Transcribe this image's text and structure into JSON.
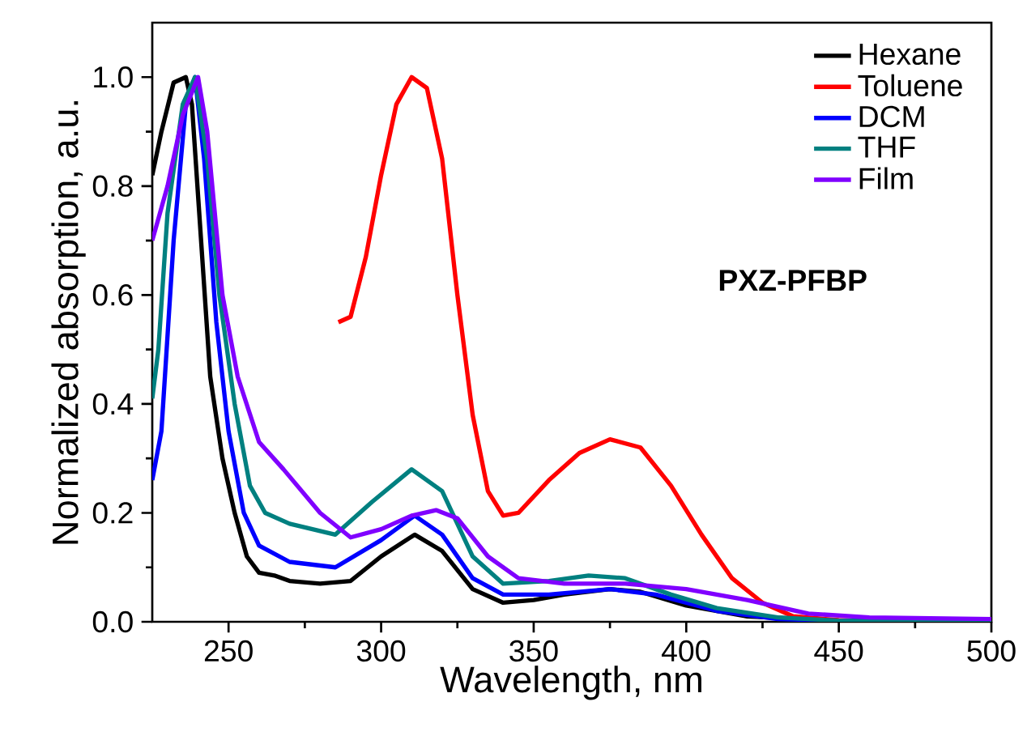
{
  "chart_data": {
    "type": "line",
    "xlabel": "Wavelength, nm",
    "ylabel": "Normalized absorption, a.u.",
    "annotations": [
      "PXZ-PFBP"
    ],
    "legend": "top right",
    "grid": false,
    "marker": "none",
    "line_style": "solid",
    "xlim": [
      225,
      500
    ],
    "xticks": [
      250,
      300,
      350,
      400,
      450,
      500
    ],
    "ylim": [
      0,
      1.1
    ],
    "yticks": [
      {
        "value": 0,
        "label": "0.0"
      },
      {
        "value": 0.2,
        "label": "0.2"
      },
      {
        "value": 0.4,
        "label": "0.4"
      },
      {
        "value": 0.6,
        "label": "0.6"
      },
      {
        "value": 0.8,
        "label": "0.8"
      },
      {
        "value": 1.0,
        "label": "1.0"
      }
    ],
    "series": [
      {
        "name": "Hexane",
        "color": "#000000",
        "x": [
          225,
          228,
          232,
          236,
          238,
          241,
          244,
          248,
          252,
          256,
          260,
          265,
          270,
          280,
          290,
          300,
          311,
          320,
          330,
          340,
          350,
          360,
          375,
          385,
          400,
          420,
          450,
          500
        ],
        "values": [
          0.82,
          0.9,
          0.99,
          1.0,
          0.95,
          0.7,
          0.45,
          0.3,
          0.2,
          0.12,
          0.09,
          0.085,
          0.075,
          0.07,
          0.075,
          0.12,
          0.16,
          0.13,
          0.06,
          0.035,
          0.04,
          0.05,
          0.06,
          0.055,
          0.03,
          0.01,
          0.002,
          0
        ]
      },
      {
        "name": "Toluene",
        "color": "#ff0000",
        "x": [
          286,
          290,
          295,
          300,
          305,
          310,
          315,
          320,
          325,
          330,
          335,
          340,
          345,
          355,
          365,
          375,
          385,
          395,
          405,
          415,
          425,
          435,
          450,
          470
        ],
        "values": [
          0.55,
          0.56,
          0.67,
          0.82,
          0.95,
          1.0,
          0.98,
          0.85,
          0.6,
          0.38,
          0.24,
          0.195,
          0.2,
          0.26,
          0.31,
          0.335,
          0.32,
          0.25,
          0.16,
          0.08,
          0.035,
          0.01,
          0.003,
          0
        ]
      },
      {
        "name": "DCM",
        "color": "#0000ff",
        "x": [
          225,
          228,
          232,
          236,
          239,
          242,
          246,
          250,
          255,
          260,
          270,
          285,
          300,
          311,
          320,
          330,
          340,
          355,
          375,
          390,
          410,
          430,
          450,
          500
        ],
        "values": [
          0.26,
          0.35,
          0.7,
          0.95,
          1.0,
          0.85,
          0.55,
          0.35,
          0.2,
          0.14,
          0.11,
          0.1,
          0.15,
          0.195,
          0.16,
          0.08,
          0.05,
          0.05,
          0.06,
          0.05,
          0.02,
          0.005,
          0.002,
          0
        ]
      },
      {
        "name": "THF",
        "color": "#008080",
        "x": [
          225,
          227,
          230,
          235,
          239,
          243,
          247,
          252,
          257,
          262,
          270,
          285,
          297,
          310,
          320,
          330,
          340,
          355,
          368,
          380,
          395,
          410,
          430,
          450,
          500
        ],
        "values": [
          0.41,
          0.5,
          0.75,
          0.95,
          1.0,
          0.85,
          0.6,
          0.4,
          0.25,
          0.2,
          0.18,
          0.16,
          0.22,
          0.28,
          0.24,
          0.12,
          0.07,
          0.075,
          0.085,
          0.08,
          0.05,
          0.025,
          0.008,
          0.002,
          0
        ]
      },
      {
        "name": "Film",
        "color": "#8000ff",
        "x": [
          225,
          230,
          235,
          240,
          243,
          248,
          253,
          260,
          268,
          280,
          290,
          300,
          310,
          318,
          325,
          335,
          345,
          360,
          380,
          400,
          420,
          440,
          460,
          500
        ],
        "values": [
          0.7,
          0.8,
          0.93,
          1.0,
          0.9,
          0.6,
          0.45,
          0.33,
          0.28,
          0.2,
          0.155,
          0.17,
          0.195,
          0.205,
          0.19,
          0.12,
          0.08,
          0.07,
          0.07,
          0.06,
          0.04,
          0.015,
          0.008,
          0.005
        ]
      }
    ]
  }
}
